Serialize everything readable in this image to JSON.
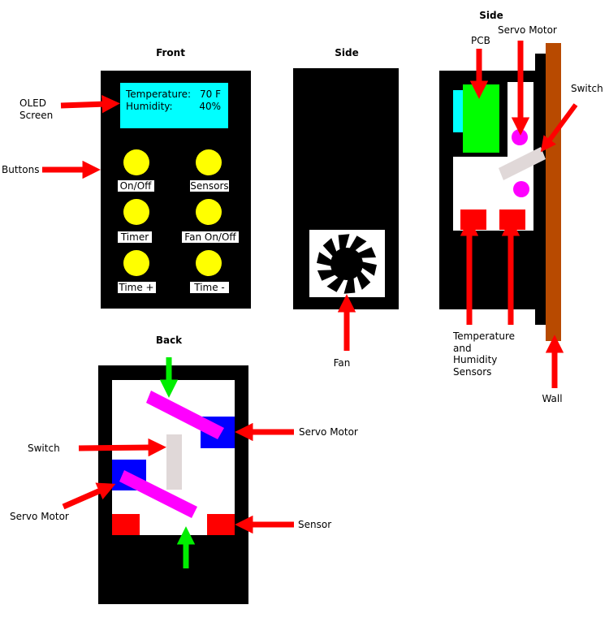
{
  "colors": {
    "device": "#000000",
    "panel": "#ffffff",
    "screen": "#00ffff",
    "button": "#ffff00",
    "arrow": "#ff0000",
    "green_arrow": "#00ee00",
    "servo_dot": "#ff00ff",
    "servo_motor": "#0000ff",
    "arm": "#ff00ff",
    "switch": "#e0d8d8",
    "pcb": "#00ff00",
    "pcb_cyan": "#00ffff",
    "sensor": "#ff0000",
    "wall": "#b84a00"
  },
  "front": {
    "title": "Front",
    "screen_lines": [
      {
        "label": "Temperature:",
        "value": "70 F"
      },
      {
        "label": "Humidity:",
        "value": "40%"
      }
    ],
    "buttons": [
      "On/Off",
      "Sensors",
      "Timer",
      "Fan On/Off",
      "Time +",
      "Time -"
    ],
    "callouts": {
      "oled_line1": "OLED",
      "oled_line2": "Screen",
      "buttons": "Buttons"
    }
  },
  "side_fan": {
    "title": "Side",
    "fan_label": "Fan"
  },
  "side_wall": {
    "title": "Side",
    "pcb_label": "PCB",
    "servo_label": "Servo Motor",
    "switch_label": "Switch",
    "sensors_lines": [
      "Temperature",
      "and",
      "Humidity",
      "Sensors"
    ],
    "wall_label": "Wall"
  },
  "back": {
    "title": "Back",
    "switch_label": "Switch",
    "servo_right_label": "Servo Motor",
    "servo_left_label": "Servo Motor",
    "sensor_label": "Sensor"
  }
}
